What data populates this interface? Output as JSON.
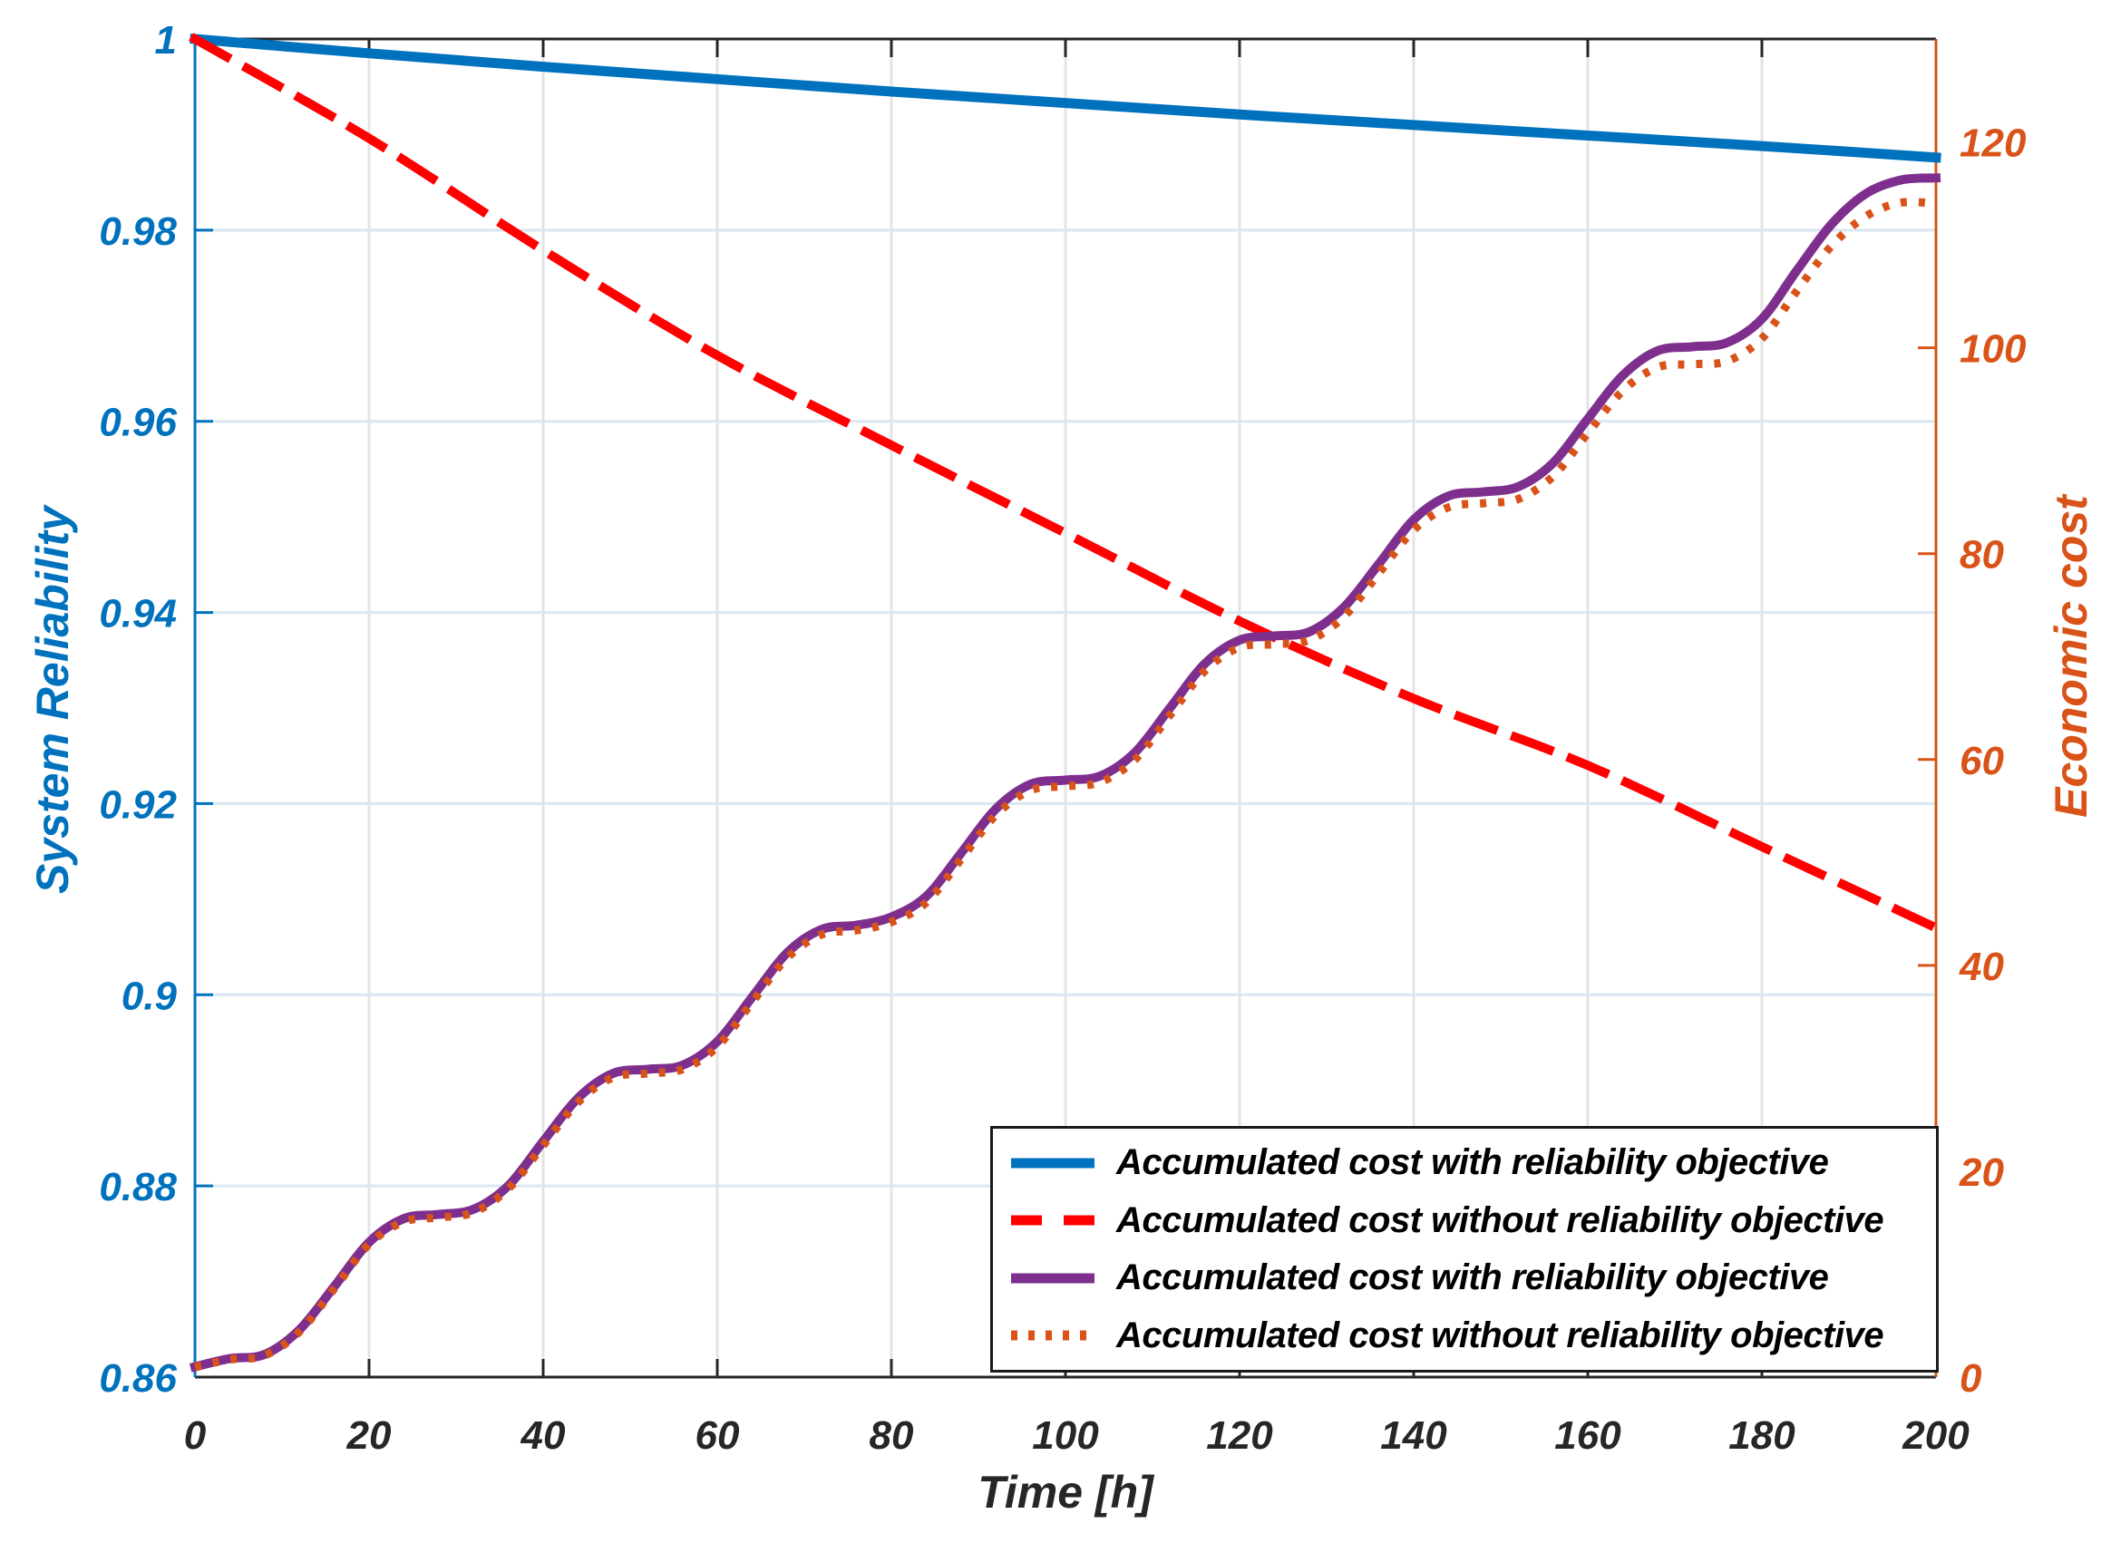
{
  "chart_data": {
    "type": "line",
    "title": "",
    "xlabel": "Time [h]",
    "ylabel_left": "System Reliability",
    "ylabel_right": "Economic cost",
    "xlim": [
      0,
      200
    ],
    "ylim_left": [
      0.86,
      1.0
    ],
    "ylim_right": [
      0,
      130
    ],
    "grid": true,
    "legend_position": "inside-lower-right",
    "x_ticks": [
      "0",
      "20",
      "40",
      "60",
      "80",
      "100",
      "120",
      "140",
      "160",
      "180",
      "200"
    ],
    "x_tick_values": [
      0,
      20,
      40,
      60,
      80,
      100,
      120,
      140,
      160,
      180,
      200
    ],
    "y_ticks_left": [
      "1",
      "0.98",
      "0.96",
      "0.94",
      "0.92",
      "0.9",
      "0.88",
      "0.86"
    ],
    "y_tick_left_values": [
      1.0,
      0.98,
      0.96,
      0.94,
      0.92,
      0.9,
      0.88,
      0.86
    ],
    "y_ticks_right": [
      "0",
      "20",
      "40",
      "60",
      "80",
      "100",
      "120"
    ],
    "y_tick_right_values": [
      0,
      20,
      40,
      60,
      80,
      100,
      120
    ],
    "colors": {
      "left_axis": "#0072BD",
      "right_axis": "#D95319",
      "x_axis": "#262626",
      "grid_horizontal": "#d9e7f3",
      "grid_vertical": "#e4e4e4",
      "legend_border": "#1a1a1a",
      "series_blue": "#0072BD",
      "series_red": "#FF0000",
      "series_purple": "#7E2F8E",
      "series_orange": "#D95319"
    },
    "series": [
      {
        "name": "Accumulated cost with reliability objective",
        "axis": "left",
        "color": "#0072BD",
        "style": "solid",
        "width": 11,
        "x": [
          0,
          20,
          40,
          60,
          80,
          100,
          120,
          140,
          160,
          180,
          200
        ],
        "y": [
          1.0,
          0.9985,
          0.9971,
          0.9958,
          0.9945,
          0.9933,
          0.9921,
          0.991,
          0.9899,
          0.9888,
          0.9876
        ]
      },
      {
        "name": "Accumulated cost without reliability objective",
        "axis": "left",
        "color": "#FF0000",
        "style": "dashed",
        "width": 10,
        "x": [
          0,
          20,
          40,
          60,
          80,
          100,
          120,
          140,
          160,
          180,
          200
        ],
        "y": [
          1.0,
          0.9896,
          0.9779,
          0.9669,
          0.9575,
          0.9483,
          0.9391,
          0.931,
          0.924,
          0.9155,
          0.907
        ]
      },
      {
        "name": "Accumulated cost with reliability objective",
        "axis": "right",
        "color": "#7E2F8E",
        "style": "solid",
        "width": 10,
        "x": [
          0,
          4,
          8,
          12,
          16,
          20,
          24,
          28,
          32,
          36,
          40,
          44,
          48,
          52,
          56,
          60,
          64,
          68,
          72,
          76,
          80,
          84,
          88,
          92,
          96,
          100,
          104,
          108,
          112,
          116,
          120,
          124,
          128,
          132,
          136,
          140,
          144,
          148,
          152,
          156,
          160,
          164,
          168,
          172,
          176,
          180,
          184,
          188,
          192,
          196,
          200
        ],
        "y": [
          1.0,
          1.8,
          2.2,
          4.6,
          8.8,
          13.1,
          15.4,
          15.8,
          16.3,
          18.6,
          22.9,
          27.1,
          29.5,
          29.9,
          30.3,
          32.6,
          36.9,
          41.2,
          43.5,
          43.9,
          44.7,
          46.7,
          50.9,
          55.2,
          57.6,
          58.0,
          58.4,
          60.7,
          65.0,
          69.3,
          71.6,
          72.0,
          72.4,
          74.8,
          79.0,
          83.3,
          85.6,
          86.0,
          86.5,
          88.8,
          93.1,
          97.3,
          99.7,
          100.1,
          100.5,
          102.8,
          107.5,
          112.0,
          115.0,
          116.3,
          116.5
        ]
      },
      {
        "name": "Accumulated cost without reliability objective",
        "axis": "right",
        "color": "#D95319",
        "style": "dotted",
        "width": 9,
        "x": [
          0,
          4,
          8,
          12,
          16,
          20,
          24,
          28,
          32,
          36,
          40,
          44,
          48,
          52,
          56,
          60,
          64,
          68,
          72,
          76,
          80,
          84,
          88,
          92,
          96,
          100,
          104,
          108,
          112,
          116,
          120,
          124,
          128,
          132,
          136,
          140,
          144,
          148,
          152,
          156,
          160,
          164,
          168,
          172,
          176,
          180,
          184,
          188,
          192,
          196,
          200
        ],
        "y": [
          1.0,
          1.7,
          2.1,
          4.4,
          8.6,
          12.9,
          15.1,
          15.5,
          16.0,
          18.3,
          22.5,
          26.7,
          29.1,
          29.5,
          29.9,
          32.1,
          36.4,
          40.7,
          43.0,
          43.4,
          44.2,
          46.1,
          50.3,
          54.6,
          57.0,
          57.4,
          57.8,
          60.0,
          64.3,
          68.6,
          70.9,
          71.2,
          71.6,
          73.9,
          78.1,
          82.3,
          84.5,
          84.9,
          85.3,
          87.5,
          91.7,
          95.8,
          98.1,
          98.4,
          98.7,
          100.9,
          105.5,
          109.9,
          112.8,
          114.1,
          114.0
        ]
      }
    ]
  }
}
